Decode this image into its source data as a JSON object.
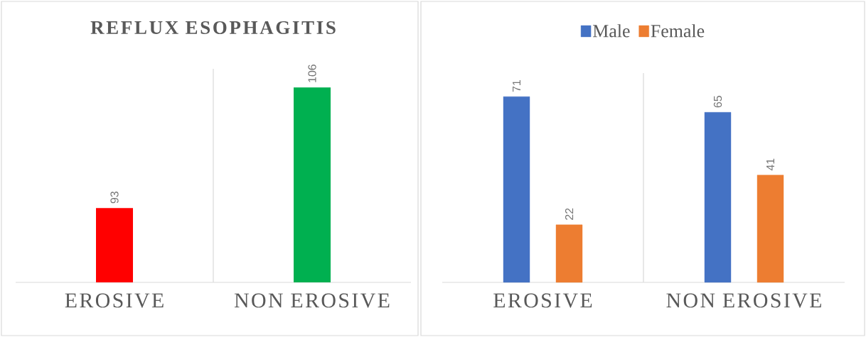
{
  "chart_data": [
    {
      "type": "bar",
      "title": "REFLUX ESOPHAGITIS",
      "categories": [
        "EROSIVE",
        "NON EROSIVE"
      ],
      "values": [
        93,
        106
      ],
      "colors": [
        "#ff0000",
        "#00b050"
      ],
      "ylim": [
        85,
        108
      ],
      "data_labels": true,
      "grid": "x",
      "legend": false
    },
    {
      "type": "bar",
      "categories": [
        "EROSIVE",
        "NON EROSIVE"
      ],
      "series": [
        {
          "name": "Male",
          "color": "#4472c4",
          "values": [
            71,
            65
          ]
        },
        {
          "name": "Female",
          "color": "#ed7d31",
          "values": [
            22,
            41
          ]
        }
      ],
      "ylim": [
        0,
        80
      ],
      "data_labels": true,
      "grid": "x",
      "legend": "top"
    }
  ]
}
